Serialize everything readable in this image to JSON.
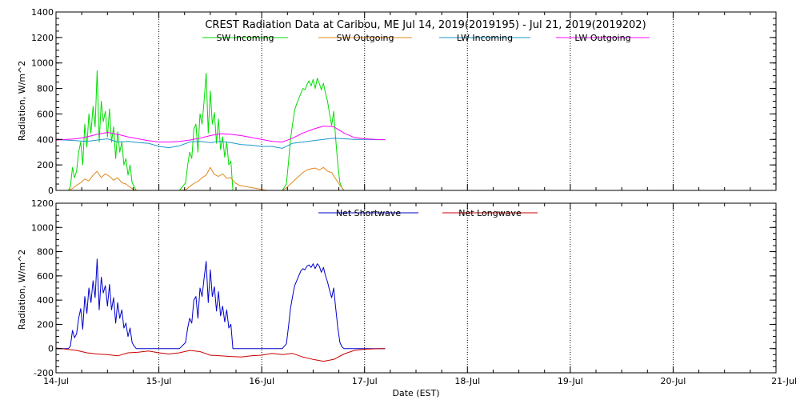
{
  "chart_data": [
    {
      "type": "line",
      "panel": "top",
      "title": "CREST Radiation Data at Caribou, ME   Jul 14, 2019(2019195) - Jul 21, 2019(2019202)",
      "ylabel": "Radiation, W/m^2",
      "xlabel": "",
      "ylim": [
        0,
        1400
      ],
      "yticks": [
        0,
        200,
        400,
        600,
        800,
        1000,
        1200,
        1400
      ],
      "xlim": [
        0,
        7
      ],
      "grid": true,
      "legend": "top",
      "series": [
        {
          "name": "SW Incoming",
          "color": "#00dd00",
          "x": [
            0.0,
            0.12,
            0.14,
            0.16,
            0.18,
            0.2,
            0.22,
            0.24,
            0.26,
            0.28,
            0.3,
            0.32,
            0.34,
            0.36,
            0.38,
            0.4,
            0.42,
            0.44,
            0.46,
            0.48,
            0.5,
            0.52,
            0.54,
            0.56,
            0.58,
            0.6,
            0.62,
            0.64,
            0.66,
            0.68,
            0.7,
            0.72,
            0.74,
            0.76,
            0.78,
            0.8,
            1.0,
            1.2,
            1.26,
            1.28,
            1.3,
            1.32,
            1.34,
            1.36,
            1.38,
            1.4,
            1.42,
            1.44,
            1.46,
            1.48,
            1.5,
            1.52,
            1.54,
            1.56,
            1.58,
            1.6,
            1.62,
            1.64,
            1.66,
            1.68,
            1.7,
            1.72,
            1.74,
            1.76,
            1.78,
            2.05,
            2.1,
            2.2,
            2.24,
            2.26,
            2.28,
            2.3,
            2.32,
            2.34,
            2.36,
            2.38,
            2.4,
            2.42,
            2.44,
            2.46,
            2.48,
            2.5,
            2.52,
            2.54,
            2.56,
            2.58,
            2.6,
            2.62,
            2.64,
            2.66,
            2.68,
            2.7,
            2.72,
            2.74,
            2.76,
            2.78,
            2.8,
            2.82,
            3.0,
            3.2
          ],
          "values": [
            0,
            0,
            30,
            180,
            100,
            150,
            300,
            380,
            200,
            520,
            340,
            600,
            450,
            660,
            500,
            940,
            380,
            700,
            540,
            620,
            420,
            640,
            380,
            500,
            250,
            460,
            300,
            380,
            200,
            250,
            120,
            200,
            60,
            30,
            0,
            0,
            0,
            0,
            60,
            200,
            300,
            250,
            480,
            520,
            300,
            600,
            520,
            700,
            920,
            450,
            780,
            520,
            610,
            370,
            560,
            320,
            420,
            260,
            380,
            200,
            230,
            0,
            0,
            0,
            0,
            0,
            0,
            0,
            50,
            220,
            400,
            520,
            630,
            680,
            720,
            760,
            800,
            790,
            830,
            860,
            820,
            870,
            800,
            880,
            840,
            790,
            840,
            760,
            700,
            600,
            510,
            620,
            400,
            200,
            60,
            20,
            0,
            0,
            0,
            0
          ]
        },
        {
          "name": "SW Outgoing",
          "color": "#e08a1e",
          "x": [
            0.0,
            0.12,
            0.16,
            0.2,
            0.24,
            0.28,
            0.32,
            0.36,
            0.4,
            0.44,
            0.48,
            0.52,
            0.56,
            0.6,
            0.64,
            0.68,
            0.72,
            0.76,
            0.8,
            1.2,
            1.26,
            1.3,
            1.34,
            1.38,
            1.42,
            1.46,
            1.5,
            1.54,
            1.58,
            1.62,
            1.66,
            1.7,
            1.74,
            1.78,
            2.05,
            2.2,
            2.24,
            2.28,
            2.32,
            2.36,
            2.4,
            2.44,
            2.48,
            2.52,
            2.56,
            2.6,
            2.64,
            2.68,
            2.72,
            2.76,
            2.8,
            3.2
          ],
          "values": [
            0,
            0,
            15,
            40,
            60,
            90,
            75,
            120,
            150,
            100,
            130,
            110,
            80,
            100,
            60,
            50,
            25,
            5,
            0,
            0,
            5,
            30,
            55,
            70,
            100,
            120,
            180,
            125,
            110,
            130,
            95,
            100,
            60,
            40,
            0,
            0,
            20,
            50,
            80,
            110,
            140,
            160,
            170,
            175,
            160,
            180,
            150,
            140,
            90,
            40,
            0,
            0
          ]
        },
        {
          "name": "LW Incoming",
          "color": "#1a99cc",
          "x": [
            0.0,
            0.1,
            0.2,
            0.3,
            0.4,
            0.5,
            0.6,
            0.7,
            0.8,
            0.9,
            1.0,
            1.1,
            1.2,
            1.3,
            1.4,
            1.5,
            1.6,
            1.7,
            1.8,
            1.9,
            2.0,
            2.1,
            2.2,
            2.3,
            2.4,
            2.5,
            2.6,
            2.7,
            2.8,
            2.9,
            3.0,
            3.1,
            3.2
          ],
          "values": [
            400,
            395,
            390,
            385,
            395,
            405,
            380,
            385,
            375,
            370,
            345,
            335,
            350,
            380,
            385,
            375,
            385,
            375,
            360,
            355,
            345,
            345,
            330,
            370,
            380,
            390,
            400,
            410,
            405,
            400,
            400,
            398,
            398
          ]
        },
        {
          "name": "LW Outgoing",
          "color": "#ff00ff",
          "x": [
            0.0,
            0.1,
            0.2,
            0.3,
            0.4,
            0.5,
            0.6,
            0.7,
            0.8,
            0.9,
            1.0,
            1.1,
            1.2,
            1.3,
            1.4,
            1.5,
            1.6,
            1.7,
            1.8,
            1.9,
            2.0,
            2.1,
            2.2,
            2.3,
            2.4,
            2.5,
            2.6,
            2.7,
            2.8,
            2.9,
            3.0,
            3.1,
            3.2
          ],
          "values": [
            395,
            400,
            405,
            420,
            440,
            455,
            440,
            420,
            405,
            390,
            380,
            380,
            385,
            395,
            410,
            430,
            445,
            440,
            430,
            415,
            400,
            385,
            380,
            410,
            450,
            480,
            505,
            500,
            450,
            415,
            405,
            400,
            398
          ]
        }
      ]
    },
    {
      "type": "line",
      "panel": "bottom",
      "title": "",
      "ylabel": "Radiation, W/m^2",
      "xlabel": "Date (EST)",
      "ylim": [
        -200,
        1200
      ],
      "yticks": [
        -200,
        0,
        200,
        400,
        600,
        800,
        1000,
        1200
      ],
      "xlim": [
        0,
        7
      ],
      "categories": [
        "14-Jul",
        "15-Jul",
        "16-Jul",
        "17-Jul",
        "18-Jul",
        "19-Jul",
        "20-Jul",
        "21-Jul"
      ],
      "grid": true,
      "legend": "top",
      "series": [
        {
          "name": "Net Shortwave",
          "color": "#0000cc",
          "x": [
            0.0,
            0.12,
            0.14,
            0.16,
            0.18,
            0.2,
            0.22,
            0.24,
            0.26,
            0.28,
            0.3,
            0.32,
            0.34,
            0.36,
            0.38,
            0.4,
            0.42,
            0.44,
            0.46,
            0.48,
            0.5,
            0.52,
            0.54,
            0.56,
            0.58,
            0.6,
            0.62,
            0.64,
            0.66,
            0.68,
            0.7,
            0.72,
            0.74,
            0.76,
            0.78,
            0.8,
            1.0,
            1.2,
            1.26,
            1.28,
            1.3,
            1.32,
            1.34,
            1.36,
            1.38,
            1.4,
            1.42,
            1.44,
            1.46,
            1.48,
            1.5,
            1.52,
            1.54,
            1.56,
            1.58,
            1.6,
            1.62,
            1.64,
            1.66,
            1.68,
            1.7,
            1.72,
            1.74,
            1.76,
            1.78,
            2.05,
            2.1,
            2.2,
            2.24,
            2.26,
            2.28,
            2.3,
            2.32,
            2.34,
            2.36,
            2.38,
            2.4,
            2.42,
            2.44,
            2.46,
            2.48,
            2.5,
            2.52,
            2.54,
            2.56,
            2.58,
            2.6,
            2.62,
            2.64,
            2.66,
            2.68,
            2.7,
            2.72,
            2.74,
            2.76,
            2.78,
            2.8,
            2.82,
            3.0,
            3.2
          ],
          "values": [
            0,
            0,
            20,
            150,
            90,
            120,
            250,
            330,
            160,
            430,
            290,
            500,
            380,
            560,
            420,
            740,
            320,
            590,
            460,
            520,
            350,
            530,
            320,
            420,
            210,
            380,
            250,
            320,
            170,
            210,
            100,
            170,
            50,
            20,
            0,
            0,
            0,
            0,
            50,
            170,
            250,
            210,
            400,
            430,
            250,
            500,
            430,
            580,
            720,
            380,
            650,
            430,
            510,
            310,
            470,
            270,
            350,
            220,
            320,
            170,
            200,
            0,
            0,
            0,
            0,
            0,
            0,
            0,
            40,
            180,
            330,
            430,
            520,
            560,
            600,
            640,
            660,
            650,
            680,
            690,
            670,
            700,
            660,
            700,
            680,
            630,
            670,
            600,
            550,
            480,
            420,
            500,
            330,
            170,
            50,
            15,
            0,
            0,
            0,
            0
          ]
        },
        {
          "name": "Net Longwave",
          "color": "#cc0000",
          "x": [
            0.0,
            0.1,
            0.2,
            0.3,
            0.4,
            0.5,
            0.6,
            0.7,
            0.8,
            0.9,
            1.0,
            1.1,
            1.2,
            1.3,
            1.4,
            1.5,
            1.6,
            1.7,
            1.8,
            1.9,
            2.0,
            2.1,
            2.2,
            2.3,
            2.4,
            2.5,
            2.6,
            2.7,
            2.8,
            2.9,
            3.0,
            3.1,
            3.2
          ],
          "values": [
            5,
            -5,
            -15,
            -35,
            -45,
            -50,
            -60,
            -35,
            -30,
            -20,
            -35,
            -45,
            -35,
            -15,
            -25,
            -55,
            -60,
            -65,
            -70,
            -60,
            -55,
            -40,
            -50,
            -40,
            -70,
            -90,
            -105,
            -90,
            -45,
            -15,
            -5,
            -2,
            0
          ]
        }
      ]
    }
  ]
}
